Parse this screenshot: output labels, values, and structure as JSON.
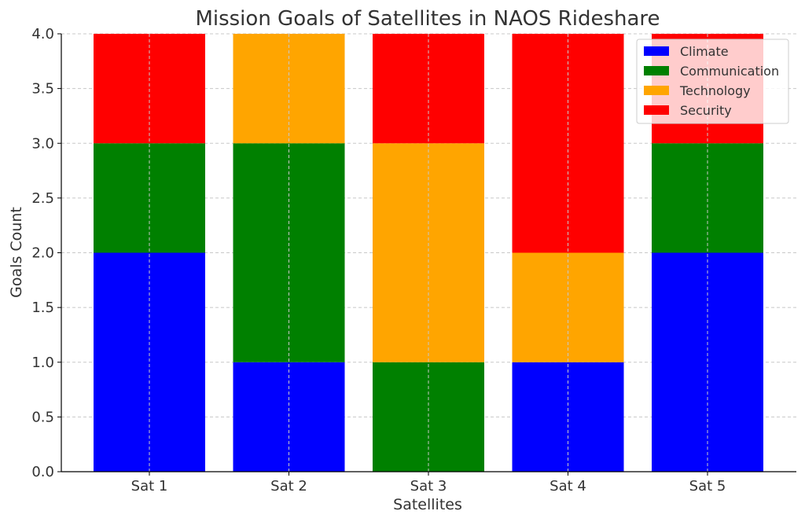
{
  "chart_data": {
    "type": "bar",
    "stacked": true,
    "title": "Mission Goals of Satellites in NAOS Rideshare",
    "xlabel": "Satellites",
    "ylabel": "Goals Count",
    "categories": [
      "Sat 1",
      "Sat 2",
      "Sat 3",
      "Sat 4",
      "Sat 5"
    ],
    "ylim": [
      0,
      4
    ],
    "yticks": [
      "0.0",
      "0.5",
      "1.0",
      "1.5",
      "2.0",
      "2.5",
      "3.0",
      "3.5",
      "4.0"
    ],
    "grid": true,
    "legend_position": "top-right",
    "series": [
      {
        "name": "Climate",
        "color": "#0000ff",
        "values": [
          2,
          1,
          0,
          1,
          2
        ]
      },
      {
        "name": "Communication",
        "color": "#008000",
        "values": [
          1,
          2,
          1,
          0,
          1
        ]
      },
      {
        "name": "Technology",
        "color": "#ffa500",
        "values": [
          0,
          1,
          2,
          1,
          0
        ]
      },
      {
        "name": "Security",
        "color": "#ff0000",
        "values": [
          1,
          0,
          1,
          2,
          1
        ]
      }
    ]
  }
}
